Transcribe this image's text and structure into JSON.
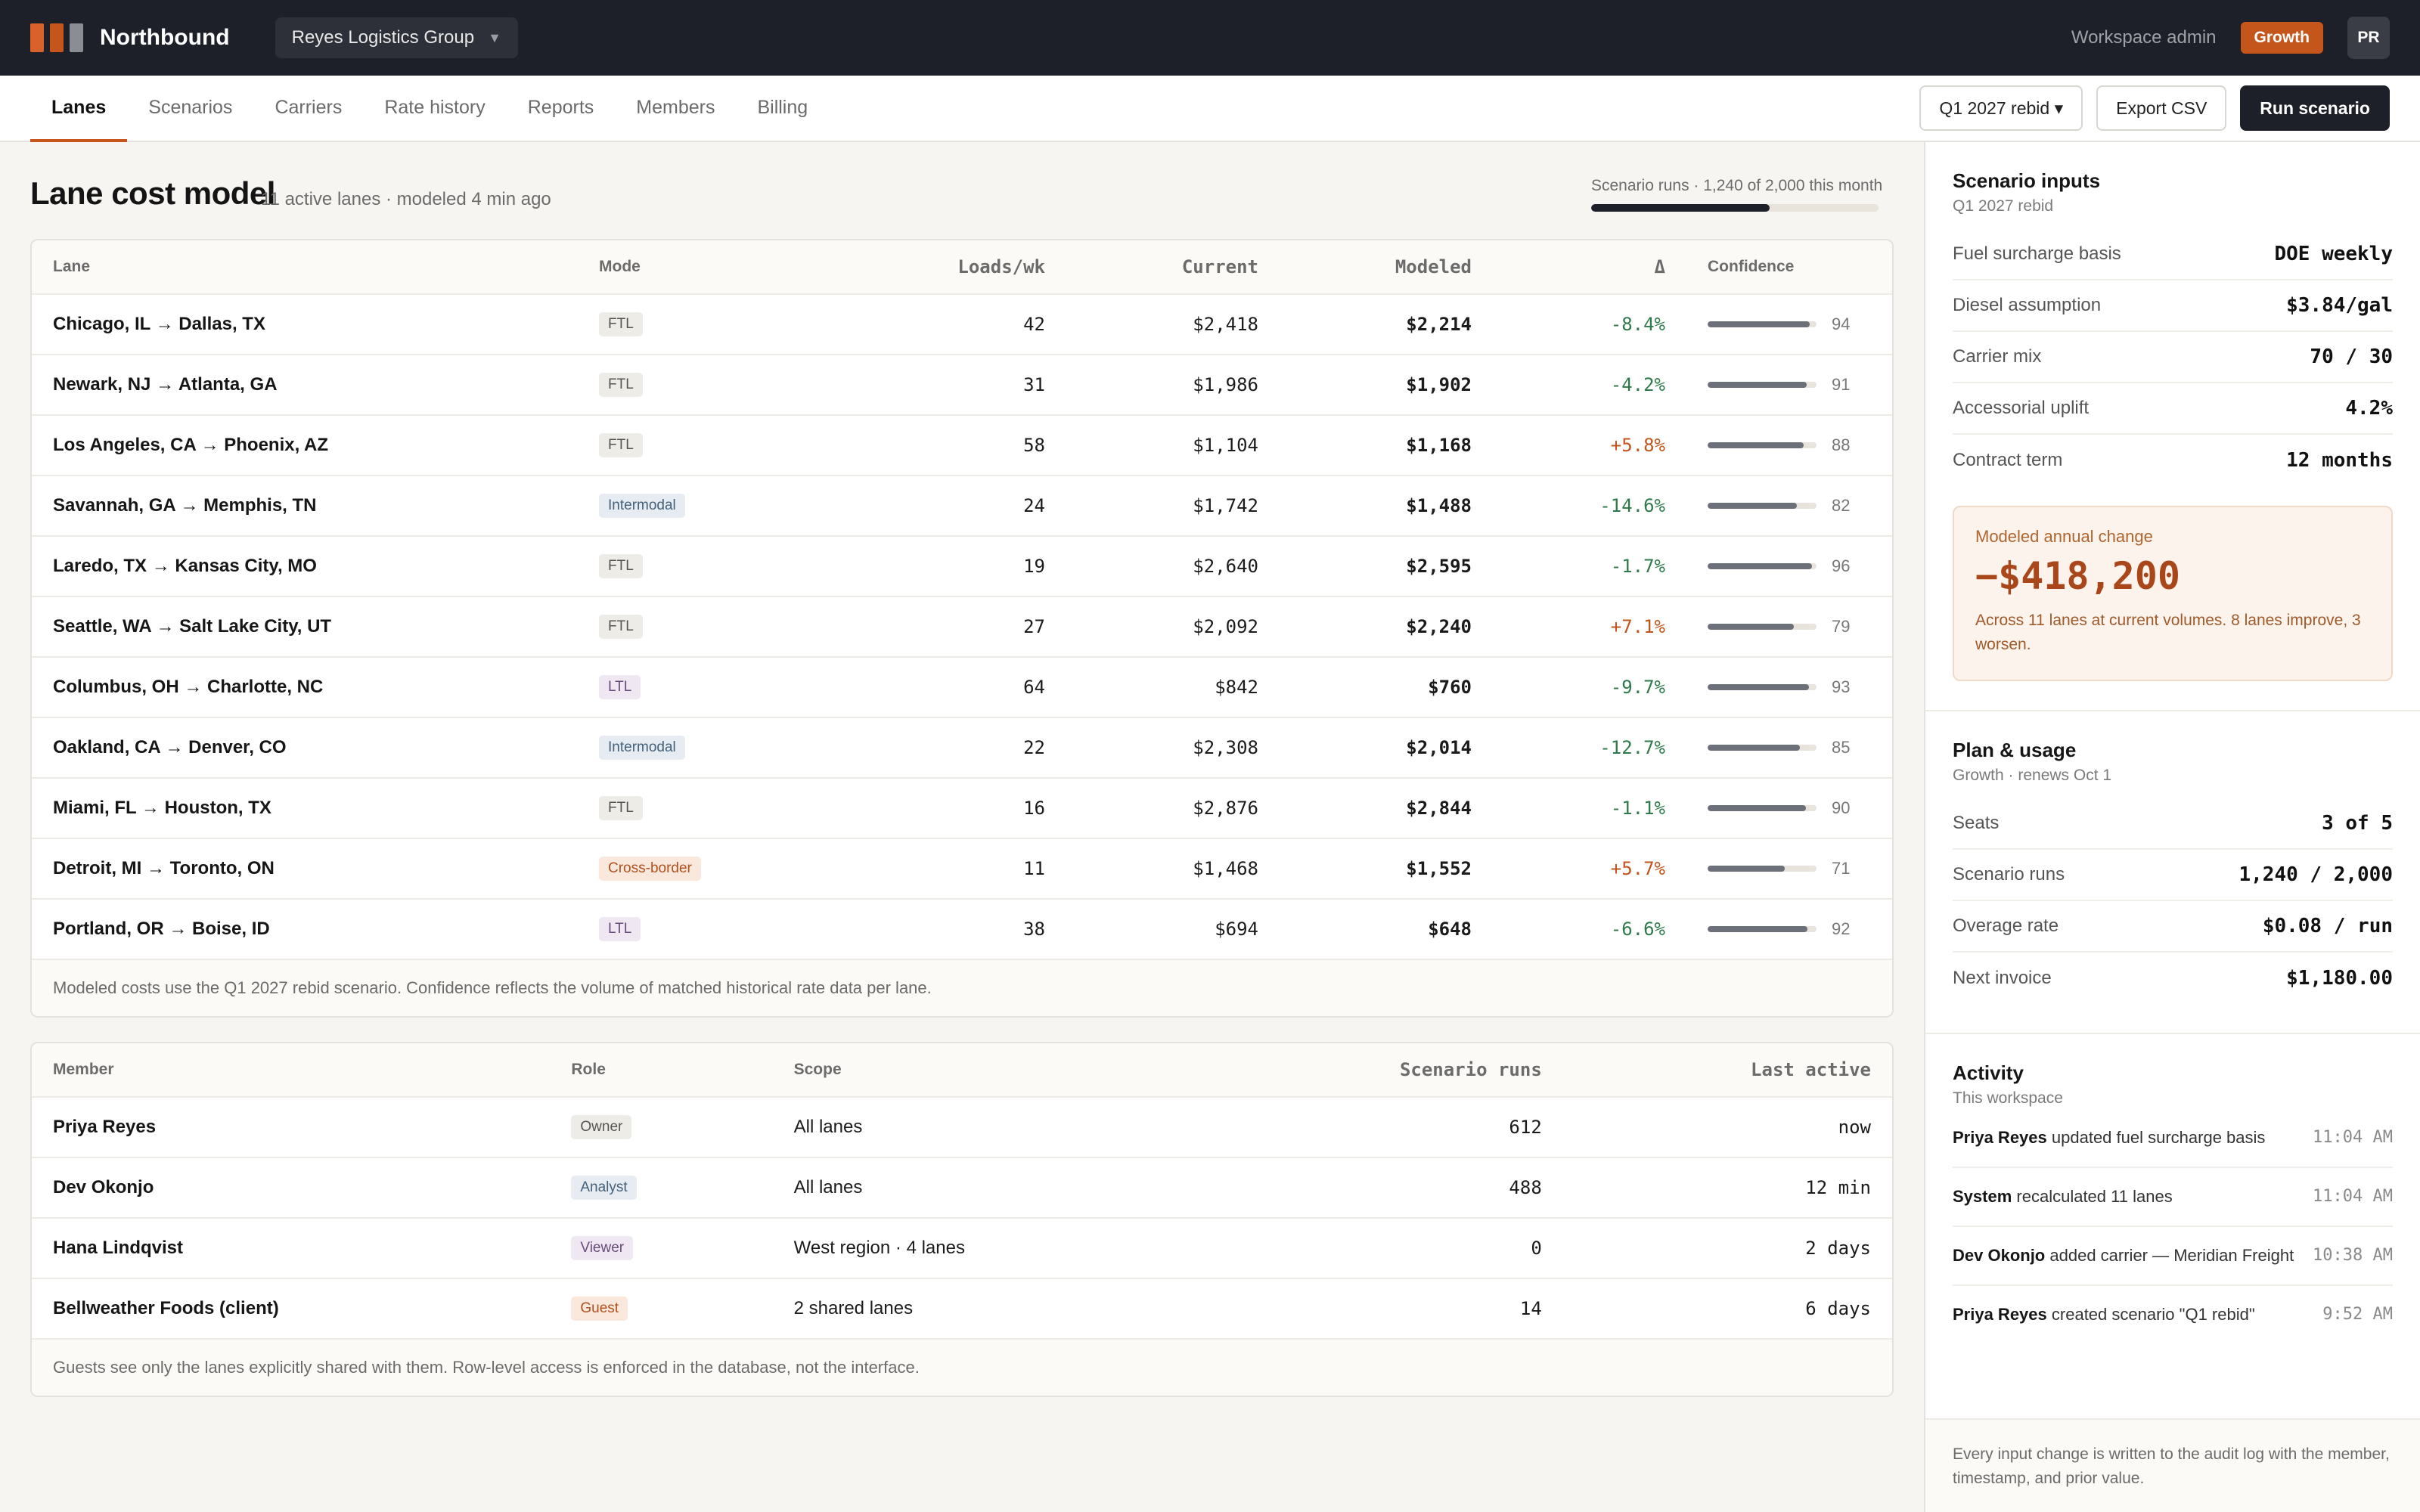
{
  "app": {
    "brand": "Northbound",
    "logo_colors": [
      "#d8622a",
      "#c4551b",
      "#8a8d94"
    ],
    "workspace": "Reyes Logistics Group",
    "admin_label": "Workspace admin",
    "plan_badge": "Growth",
    "avatar_initials": "PR"
  },
  "nav": {
    "tabs": [
      "Lanes",
      "Scenarios",
      "Carriers",
      "Rate history",
      "Reports",
      "Members",
      "Billing"
    ],
    "active_tab": "Lanes",
    "scenario_select": "Q1 2027 rebid ▾",
    "export_label": "Export CSV",
    "run_label": "Run scenario"
  },
  "page": {
    "title": "Lane cost model",
    "subtitle": "11 active lanes · modeled 4 min ago",
    "usage_label": "Scenario runs · 1,240 of 2,000 this month",
    "usage_fraction": 0.62
  },
  "lanes_table": {
    "headers": {
      "lane": "Lane",
      "mode": "Mode",
      "loads": "Loads/wk",
      "current": "Current",
      "modeled": "Modeled",
      "delta": "Δ",
      "confidence": "Confidence"
    },
    "rows": [
      {
        "lane": "Chicago, IL → Dallas, TX",
        "mode": "FTL",
        "mode_kind": "ftl",
        "loads": "42",
        "current": "$2,418",
        "modeled": "$2,214",
        "delta": "-8.4%",
        "dir": "neg",
        "conf": 94
      },
      {
        "lane": "Newark, NJ → Atlanta, GA",
        "mode": "FTL",
        "mode_kind": "ftl",
        "loads": "31",
        "current": "$1,986",
        "modeled": "$1,902",
        "delta": "-4.2%",
        "dir": "neg",
        "conf": 91
      },
      {
        "lane": "Los Angeles, CA → Phoenix, AZ",
        "mode": "FTL",
        "mode_kind": "ftl",
        "loads": "58",
        "current": "$1,104",
        "modeled": "$1,168",
        "delta": "+5.8%",
        "dir": "pos",
        "conf": 88
      },
      {
        "lane": "Savannah, GA → Memphis, TN",
        "mode": "Intermodal",
        "mode_kind": "intermodal",
        "loads": "24",
        "current": "$1,742",
        "modeled": "$1,488",
        "delta": "-14.6%",
        "dir": "neg",
        "conf": 82
      },
      {
        "lane": "Laredo, TX → Kansas City, MO",
        "mode": "FTL",
        "mode_kind": "ftl",
        "loads": "19",
        "current": "$2,640",
        "modeled": "$2,595",
        "delta": "-1.7%",
        "dir": "neg",
        "conf": 96
      },
      {
        "lane": "Seattle, WA → Salt Lake City, UT",
        "mode": "FTL",
        "mode_kind": "ftl",
        "loads": "27",
        "current": "$2,092",
        "modeled": "$2,240",
        "delta": "+7.1%",
        "dir": "pos",
        "conf": 79
      },
      {
        "lane": "Columbus, OH → Charlotte, NC",
        "mode": "LTL",
        "mode_kind": "ltl",
        "loads": "64",
        "current": "$842",
        "modeled": "$760",
        "delta": "-9.7%",
        "dir": "neg",
        "conf": 93
      },
      {
        "lane": "Oakland, CA → Denver, CO",
        "mode": "Intermodal",
        "mode_kind": "intermodal",
        "loads": "22",
        "current": "$2,308",
        "modeled": "$2,014",
        "delta": "-12.7%",
        "dir": "neg",
        "conf": 85
      },
      {
        "lane": "Miami, FL → Houston, TX",
        "mode": "FTL",
        "mode_kind": "ftl",
        "loads": "16",
        "current": "$2,876",
        "modeled": "$2,844",
        "delta": "-1.1%",
        "dir": "neg",
        "conf": 90
      },
      {
        "lane": "Detroit, MI → Toronto, ON",
        "mode": "Cross-border",
        "mode_kind": "cross",
        "loads": "11",
        "current": "$1,468",
        "modeled": "$1,552",
        "delta": "+5.7%",
        "dir": "pos",
        "conf": 71
      },
      {
        "lane": "Portland, OR → Boise, ID",
        "mode": "LTL",
        "mode_kind": "ltl",
        "loads": "38",
        "current": "$694",
        "modeled": "$648",
        "delta": "-6.6%",
        "dir": "neg",
        "conf": 92
      }
    ],
    "note": "Modeled costs use the Q1 2027 rebid scenario. Confidence reflects the volume of matched historical rate data per lane."
  },
  "members_table": {
    "headers": {
      "member": "Member",
      "role": "Role",
      "scope": "Scope",
      "runs": "Scenario runs",
      "last": "Last active"
    },
    "rows": [
      {
        "member": "Priya Reyes",
        "role": "Owner",
        "role_kind": "owner",
        "scope": "All lanes",
        "runs": "612",
        "last": "now"
      },
      {
        "member": "Dev Okonjo",
        "role": "Analyst",
        "role_kind": "analyst",
        "scope": "All lanes",
        "runs": "488",
        "last": "12 min"
      },
      {
        "member": "Hana Lindqvist",
        "role": "Viewer",
        "role_kind": "viewer",
        "scope": "West region · 4 lanes",
        "runs": "0",
        "last": "2 days"
      },
      {
        "member": "Bellweather Foods (client)",
        "role": "Guest",
        "role_kind": "guest",
        "scope": "2 shared lanes",
        "runs": "14",
        "last": "6 days"
      }
    ],
    "note": "Guests see only the lanes explicitly shared with them. Row-level access is enforced in the database, not the interface."
  },
  "sidebar": {
    "inputs": {
      "title": "Scenario inputs",
      "subtitle": "Q1 2027 rebid",
      "items": [
        {
          "k": "Fuel surcharge basis",
          "v": "DOE weekly"
        },
        {
          "k": "Diesel assumption",
          "v": "$3.84/gal"
        },
        {
          "k": "Carrier mix",
          "v": "70 / 30"
        },
        {
          "k": "Accessorial uplift",
          "v": "4.2%"
        },
        {
          "k": "Contract term",
          "v": "12 months"
        }
      ],
      "callout_label": "Modeled annual change",
      "callout_value": "−$418,200",
      "callout_desc": "Across 11 lanes at current volumes. 8 lanes improve, 3 worsen."
    },
    "plan": {
      "title": "Plan & usage",
      "subtitle": "Growth · renews Oct 1",
      "items": [
        {
          "k": "Seats",
          "v": "3 of 5"
        },
        {
          "k": "Scenario runs",
          "v": "1,240 / 2,000"
        },
        {
          "k": "Overage rate",
          "v": "$0.08 / run"
        },
        {
          "k": "Next invoice",
          "v": "$1,180.00"
        }
      ]
    },
    "activity": {
      "title": "Activity",
      "subtitle": "This workspace",
      "items": [
        {
          "who": "Priya Reyes",
          "what": "updated fuel surcharge basis",
          "time": "11:04 AM"
        },
        {
          "who": "System",
          "what": "recalculated 11 lanes",
          "time": "11:04 AM"
        },
        {
          "who": "Dev Okonjo",
          "what": "added carrier — Meridian Freight",
          "time": "10:38 AM"
        },
        {
          "who": "Priya Reyes",
          "what": "created scenario \"Q1 rebid\"",
          "time": "9:52 AM"
        }
      ]
    },
    "footer": "Every input change is written to the audit log with the member, timestamp, and prior value."
  }
}
